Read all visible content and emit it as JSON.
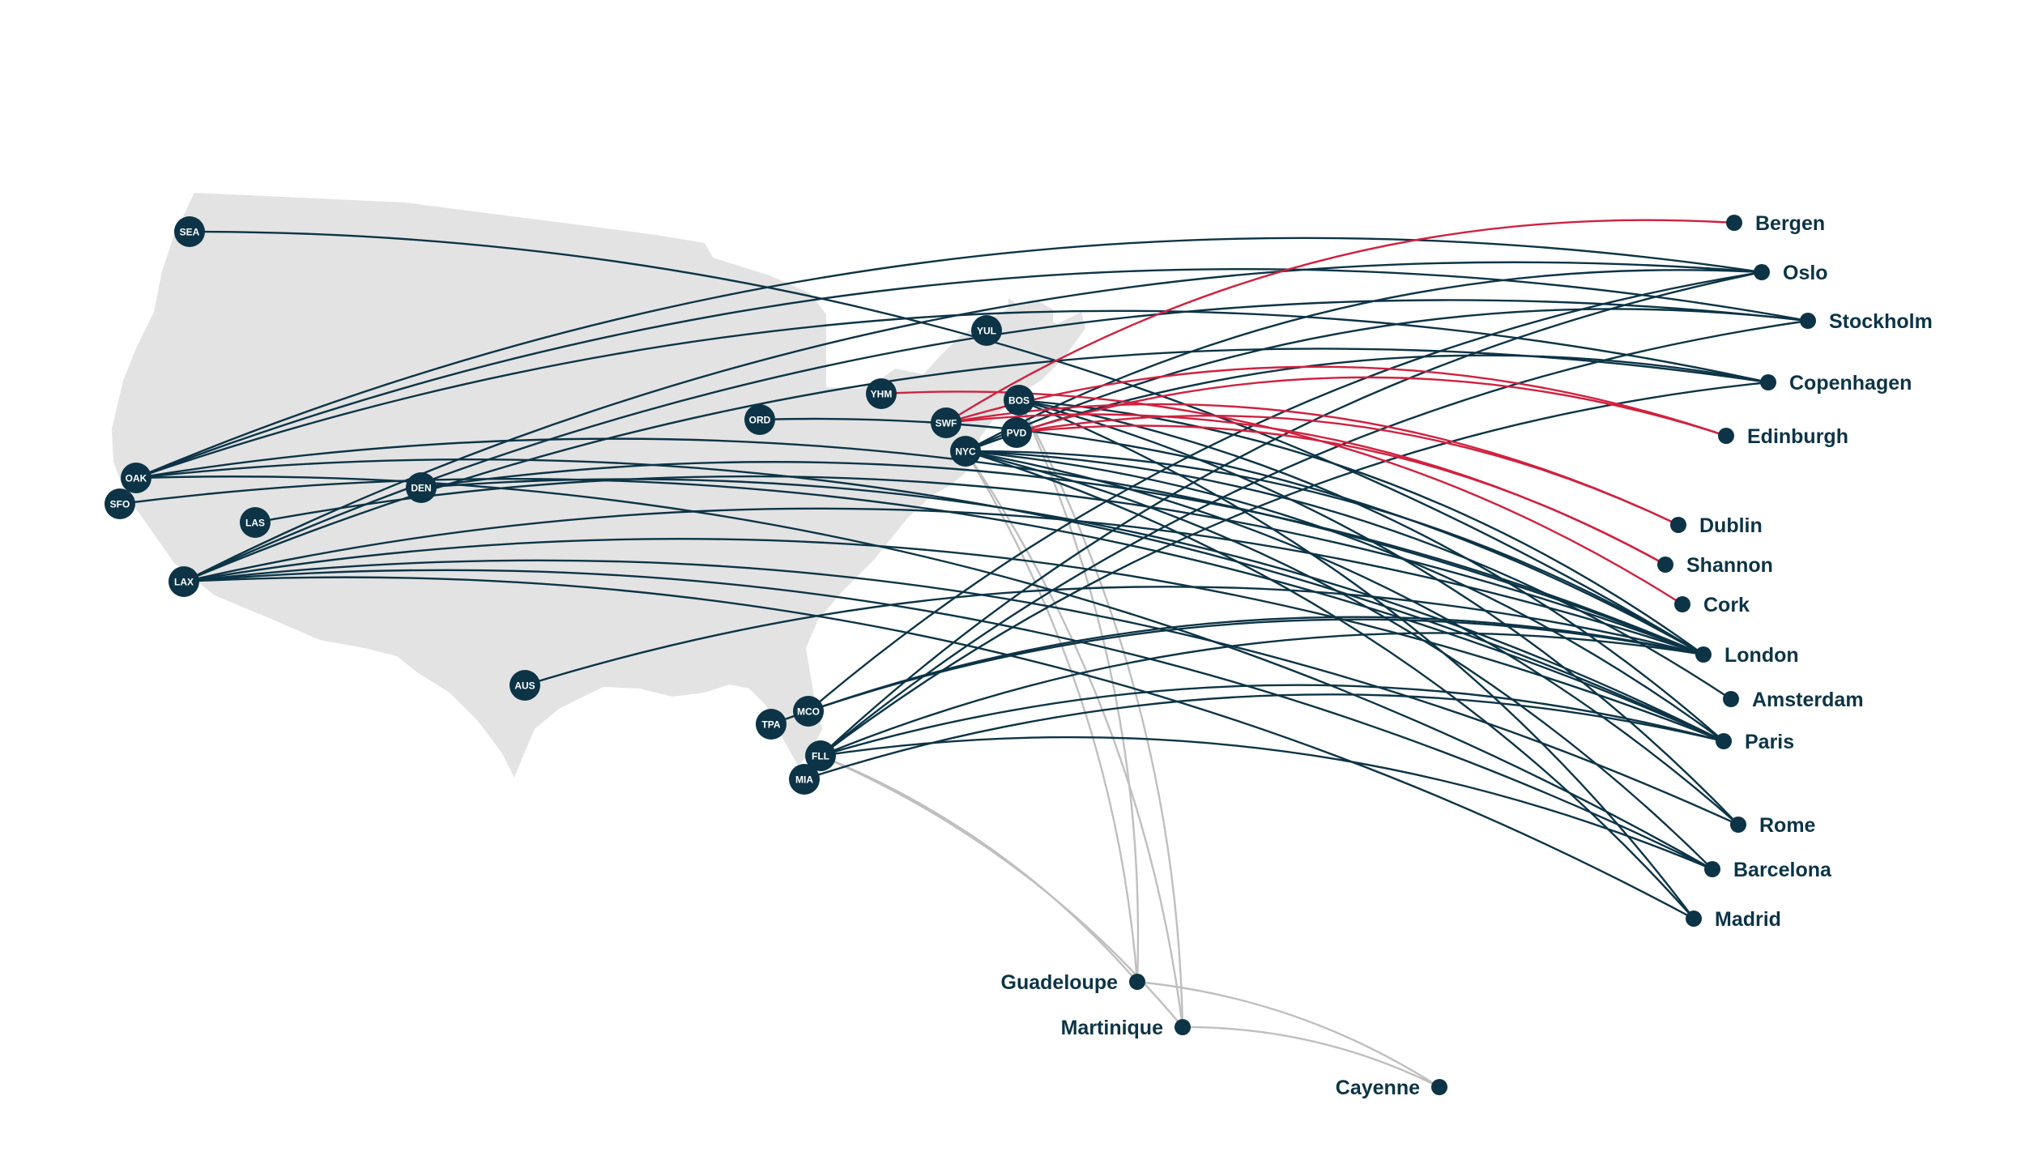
{
  "colors": {
    "land": "#e3e3e3",
    "route_transatlantic": "#0c3446",
    "route_from_hudson_hamilton": "#d0213f",
    "route_caribbean": "#bfbfbf",
    "node": "#0c3446",
    "hub_text": "#ffffff"
  },
  "hubs": [
    {
      "id": "SEA",
      "label": "SEA"
    },
    {
      "id": "OAK",
      "label": "OAK"
    },
    {
      "id": "SFO",
      "label": "SFO"
    },
    {
      "id": "LAS",
      "label": "LAS"
    },
    {
      "id": "LAX",
      "label": "LAX"
    },
    {
      "id": "DEN",
      "label": "DEN"
    },
    {
      "id": "AUS",
      "label": "AUS"
    },
    {
      "id": "ORD",
      "label": "ORD"
    },
    {
      "id": "YUL",
      "label": "YUL"
    },
    {
      "id": "YHM",
      "label": "YHM"
    },
    {
      "id": "SWF",
      "label": "SWF"
    },
    {
      "id": "BOS",
      "label": "BOS"
    },
    {
      "id": "PVD",
      "label": "PVD"
    },
    {
      "id": "NYC",
      "label": "NYC"
    },
    {
      "id": "MCO",
      "label": "MCO"
    },
    {
      "id": "TPA",
      "label": "TPA"
    },
    {
      "id": "FLL",
      "label": "FLL"
    },
    {
      "id": "MIA",
      "label": "MIA"
    }
  ],
  "destinations": [
    {
      "id": "bergen",
      "label": "Bergen"
    },
    {
      "id": "oslo",
      "label": "Oslo"
    },
    {
      "id": "stockholm",
      "label": "Stockholm"
    },
    {
      "id": "copenhagen",
      "label": "Copenhagen"
    },
    {
      "id": "edinburgh",
      "label": "Edinburgh"
    },
    {
      "id": "dublin",
      "label": "Dublin"
    },
    {
      "id": "shannon",
      "label": "Shannon"
    },
    {
      "id": "cork",
      "label": "Cork"
    },
    {
      "id": "london",
      "label": "London"
    },
    {
      "id": "amsterdam",
      "label": "Amsterdam"
    },
    {
      "id": "paris",
      "label": "Paris"
    },
    {
      "id": "rome",
      "label": "Rome"
    },
    {
      "id": "barcelona",
      "label": "Barcelona"
    },
    {
      "id": "madrid",
      "label": "Madrid"
    },
    {
      "id": "guadeloupe",
      "label": "Guadeloupe"
    },
    {
      "id": "martinique",
      "label": "Martinique"
    },
    {
      "id": "cayenne",
      "label": "Cayenne"
    }
  ],
  "routes": {
    "transatlantic": [
      [
        "SEA",
        "london"
      ],
      [
        "OAK",
        "oslo"
      ],
      [
        "OAK",
        "stockholm"
      ],
      [
        "OAK",
        "copenhagen"
      ],
      [
        "OAK",
        "london"
      ],
      [
        "OAK",
        "paris"
      ],
      [
        "OAK",
        "barcelona"
      ],
      [
        "SFO",
        "paris"
      ],
      [
        "LAS",
        "london"
      ],
      [
        "LAX",
        "oslo"
      ],
      [
        "LAX",
        "stockholm"
      ],
      [
        "LAX",
        "copenhagen"
      ],
      [
        "LAX",
        "london"
      ],
      [
        "LAX",
        "paris"
      ],
      [
        "LAX",
        "rome"
      ],
      [
        "LAX",
        "barcelona"
      ],
      [
        "LAX",
        "madrid"
      ],
      [
        "DEN",
        "london"
      ],
      [
        "DEN",
        "paris"
      ],
      [
        "AUS",
        "london"
      ],
      [
        "ORD",
        "london"
      ],
      [
        "BOS",
        "london"
      ],
      [
        "BOS",
        "paris"
      ],
      [
        "BOS",
        "rome"
      ],
      [
        "BOS",
        "madrid"
      ],
      [
        "NYC",
        "oslo"
      ],
      [
        "NYC",
        "stockholm"
      ],
      [
        "NYC",
        "copenhagen"
      ],
      [
        "NYC",
        "london"
      ],
      [
        "NYC",
        "amsterdam"
      ],
      [
        "NYC",
        "paris"
      ],
      [
        "NYC",
        "rome"
      ],
      [
        "NYC",
        "barcelona"
      ],
      [
        "NYC",
        "madrid"
      ],
      [
        "MCO",
        "oslo"
      ],
      [
        "MCO",
        "london"
      ],
      [
        "TPA",
        "london"
      ],
      [
        "FLL",
        "oslo"
      ],
      [
        "FLL",
        "stockholm"
      ],
      [
        "FLL",
        "copenhagen"
      ],
      [
        "FLL",
        "london"
      ],
      [
        "FLL",
        "paris"
      ],
      [
        "FLL",
        "barcelona"
      ],
      [
        "MIA",
        "paris"
      ]
    ],
    "hudson_hamilton": [
      [
        "SWF",
        "bergen"
      ],
      [
        "SWF",
        "edinburgh"
      ],
      [
        "SWF",
        "dublin"
      ],
      [
        "SWF",
        "shannon"
      ],
      [
        "YHM",
        "cork"
      ],
      [
        "PVD",
        "edinburgh"
      ],
      [
        "PVD",
        "dublin"
      ],
      [
        "PVD",
        "shannon"
      ]
    ],
    "caribbean": [
      [
        "NYC",
        "guadeloupe"
      ],
      [
        "NYC",
        "martinique"
      ],
      [
        "BOS",
        "guadeloupe"
      ],
      [
        "BOS",
        "martinique"
      ],
      [
        "FLL",
        "guadeloupe"
      ],
      [
        "FLL",
        "martinique"
      ],
      [
        "guadeloupe",
        "cayenne"
      ],
      [
        "martinique",
        "cayenne"
      ]
    ]
  }
}
